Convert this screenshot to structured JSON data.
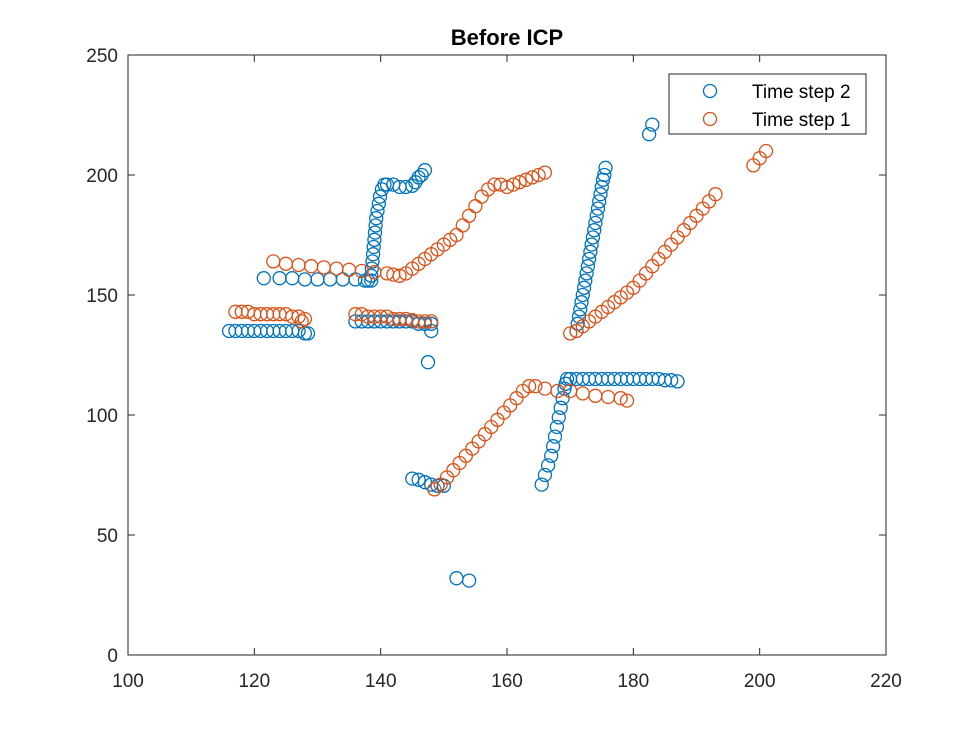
{
  "chart_data": {
    "type": "scatter",
    "title": "Before ICP",
    "xlabel": "",
    "ylabel": "",
    "xlim": [
      100,
      220
    ],
    "ylim": [
      0,
      250
    ],
    "xticks": [
      100,
      120,
      140,
      160,
      180,
      200,
      220
    ],
    "yticks": [
      0,
      50,
      100,
      150,
      200,
      250
    ],
    "xtick_labels": [
      "100",
      "120",
      "140",
      "160",
      "180",
      "200",
      "220"
    ],
    "ytick_labels": [
      "0",
      "50",
      "100",
      "150",
      "200",
      "250"
    ],
    "grid": false,
    "legend_position": "top-right",
    "marker": "circle-open",
    "series": [
      {
        "name": "Time step 2",
        "color": "#0072BD",
        "points": [
          [
            116,
            135
          ],
          [
            117,
            135
          ],
          [
            118,
            135
          ],
          [
            119,
            135
          ],
          [
            120,
            135
          ],
          [
            121,
            135
          ],
          [
            122,
            135
          ],
          [
            123,
            135
          ],
          [
            124,
            135
          ],
          [
            125,
            135
          ],
          [
            126,
            135
          ],
          [
            127,
            135
          ],
          [
            128,
            134
          ],
          [
            128.5,
            134
          ],
          [
            121.5,
            157
          ],
          [
            124,
            157
          ],
          [
            126,
            157
          ],
          [
            128,
            156.5
          ],
          [
            130,
            156.5
          ],
          [
            132,
            156.5
          ],
          [
            134,
            156.5
          ],
          [
            136,
            156.5
          ],
          [
            137.5,
            156
          ],
          [
            138,
            156
          ],
          [
            138.5,
            156
          ],
          [
            138.5,
            158
          ],
          [
            138.6,
            161
          ],
          [
            138.7,
            164
          ],
          [
            138.8,
            167
          ],
          [
            138.9,
            170
          ],
          [
            139.0,
            173
          ],
          [
            139.1,
            176
          ],
          [
            139.2,
            179
          ],
          [
            139.3,
            182
          ],
          [
            139.5,
            185
          ],
          [
            139.7,
            188
          ],
          [
            139.9,
            191
          ],
          [
            140.2,
            194
          ],
          [
            140.6,
            196
          ],
          [
            141,
            196
          ],
          [
            142,
            196
          ],
          [
            143,
            195
          ],
          [
            144,
            195
          ],
          [
            145,
            195.5
          ],
          [
            145.5,
            197
          ],
          [
            146,
            199
          ],
          [
            146.5,
            200
          ],
          [
            147,
            202
          ],
          [
            136,
            139
          ],
          [
            137,
            139
          ],
          [
            138,
            139
          ],
          [
            139,
            139
          ],
          [
            140,
            139
          ],
          [
            141,
            139
          ],
          [
            142,
            139
          ],
          [
            143,
            139
          ],
          [
            144,
            139
          ],
          [
            145,
            139
          ],
          [
            146,
            138
          ],
          [
            147,
            138
          ],
          [
            148,
            138
          ],
          [
            148,
            135
          ],
          [
            147.5,
            122
          ],
          [
            145,
            73.5
          ],
          [
            146,
            73
          ],
          [
            147,
            72
          ],
          [
            148,
            71
          ],
          [
            149,
            70.5
          ],
          [
            150,
            70.5
          ],
          [
            152,
            32
          ],
          [
            154,
            31
          ],
          [
            165.5,
            71
          ],
          [
            166,
            75
          ],
          [
            166.5,
            79
          ],
          [
            167,
            83
          ],
          [
            167.3,
            87
          ],
          [
            167.6,
            91
          ],
          [
            167.9,
            95
          ],
          [
            168.2,
            99
          ],
          [
            168.5,
            103
          ],
          [
            168.8,
            107
          ],
          [
            169.1,
            111
          ],
          [
            169.3,
            113
          ],
          [
            169.5,
            115
          ],
          [
            170,
            115
          ],
          [
            171,
            115
          ],
          [
            172,
            115
          ],
          [
            173,
            115
          ],
          [
            174,
            115
          ],
          [
            175,
            115
          ],
          [
            176,
            115
          ],
          [
            177,
            115
          ],
          [
            178,
            115
          ],
          [
            179,
            115
          ],
          [
            180,
            115
          ],
          [
            181,
            115
          ],
          [
            182,
            115
          ],
          [
            183,
            115
          ],
          [
            184,
            115
          ],
          [
            185,
            114.5
          ],
          [
            186,
            114.5
          ],
          [
            187,
            114
          ],
          [
            171,
            135
          ],
          [
            171.2,
            138
          ],
          [
            171.4,
            141
          ],
          [
            171.6,
            144
          ],
          [
            171.8,
            147
          ],
          [
            172.0,
            150
          ],
          [
            172.2,
            153
          ],
          [
            172.4,
            156
          ],
          [
            172.6,
            159
          ],
          [
            172.8,
            162
          ],
          [
            173.0,
            165
          ],
          [
            173.2,
            168
          ],
          [
            173.4,
            171
          ],
          [
            173.6,
            174
          ],
          [
            173.8,
            177
          ],
          [
            174.0,
            180
          ],
          [
            174.2,
            183
          ],
          [
            174.4,
            186
          ],
          [
            174.6,
            189
          ],
          [
            174.8,
            192
          ],
          [
            175.0,
            195
          ],
          [
            175.2,
            198
          ],
          [
            175.4,
            200
          ],
          [
            175.6,
            203
          ],
          [
            182.5,
            217
          ],
          [
            183,
            221
          ]
        ]
      },
      {
        "name": "Time step 1",
        "color": "#D95319",
        "points": [
          [
            117,
            143
          ],
          [
            118,
            143
          ],
          [
            119,
            143
          ],
          [
            120,
            142
          ],
          [
            121,
            142
          ],
          [
            122,
            142
          ],
          [
            123,
            142
          ],
          [
            124,
            142
          ],
          [
            125,
            142
          ],
          [
            126,
            141
          ],
          [
            127,
            141
          ],
          [
            128,
            140
          ],
          [
            127.5,
            139
          ],
          [
            123,
            164
          ],
          [
            125,
            163
          ],
          [
            127,
            162.5
          ],
          [
            129,
            162
          ],
          [
            131,
            161.5
          ],
          [
            133,
            161
          ],
          [
            135,
            160.5
          ],
          [
            137,
            160
          ],
          [
            139,
            159.5
          ],
          [
            141,
            159
          ],
          [
            142,
            158.5
          ],
          [
            143,
            158
          ],
          [
            144,
            159
          ],
          [
            145,
            161
          ],
          [
            146,
            163
          ],
          [
            147,
            165
          ],
          [
            148,
            167
          ],
          [
            149,
            169
          ],
          [
            150,
            171
          ],
          [
            151,
            173
          ],
          [
            152,
            175
          ],
          [
            153,
            179
          ],
          [
            154,
            183
          ],
          [
            155,
            187
          ],
          [
            156,
            191
          ],
          [
            157,
            194
          ],
          [
            158,
            196
          ],
          [
            159,
            196
          ],
          [
            160,
            195
          ],
          [
            161,
            196
          ],
          [
            162,
            197
          ],
          [
            163,
            198
          ],
          [
            164,
            199
          ],
          [
            165,
            200
          ],
          [
            166,
            201
          ],
          [
            136,
            142
          ],
          [
            137,
            142
          ],
          [
            138,
            141
          ],
          [
            139,
            141
          ],
          [
            140,
            141
          ],
          [
            141,
            141
          ],
          [
            142,
            140
          ],
          [
            143,
            140
          ],
          [
            144,
            140
          ],
          [
            145,
            139.5
          ],
          [
            146,
            139
          ],
          [
            147,
            139
          ],
          [
            148,
            139
          ],
          [
            148.5,
            69
          ],
          [
            149.5,
            71
          ],
          [
            150.5,
            74
          ],
          [
            151.5,
            77
          ],
          [
            152.5,
            80
          ],
          [
            153.5,
            83
          ],
          [
            154.5,
            86
          ],
          [
            155.5,
            89
          ],
          [
            156.5,
            92
          ],
          [
            157.5,
            95
          ],
          [
            158.5,
            98
          ],
          [
            159.5,
            101
          ],
          [
            160.5,
            104
          ],
          [
            161.5,
            107
          ],
          [
            162.5,
            110
          ],
          [
            163.5,
            112
          ],
          [
            164.5,
            112
          ],
          [
            166,
            111
          ],
          [
            168,
            110
          ],
          [
            170,
            110
          ],
          [
            172,
            109
          ],
          [
            174,
            108
          ],
          [
            176,
            107.5
          ],
          [
            178,
            107
          ],
          [
            179,
            106
          ],
          [
            170,
            134
          ],
          [
            171,
            135
          ],
          [
            172,
            137
          ],
          [
            173,
            139
          ],
          [
            174,
            141
          ],
          [
            175,
            143
          ],
          [
            176,
            145
          ],
          [
            177,
            147
          ],
          [
            178,
            149
          ],
          [
            179,
            151
          ],
          [
            180,
            153
          ],
          [
            181,
            156
          ],
          [
            182,
            159
          ],
          [
            183,
            162
          ],
          [
            184,
            165
          ],
          [
            185,
            168
          ],
          [
            186,
            171
          ],
          [
            187,
            174
          ],
          [
            188,
            177
          ],
          [
            189,
            180
          ],
          [
            190,
            183
          ],
          [
            191,
            186
          ],
          [
            192,
            189
          ],
          [
            193,
            192
          ],
          [
            199,
            204
          ],
          [
            200,
            207
          ],
          [
            201,
            210
          ]
        ]
      }
    ]
  }
}
